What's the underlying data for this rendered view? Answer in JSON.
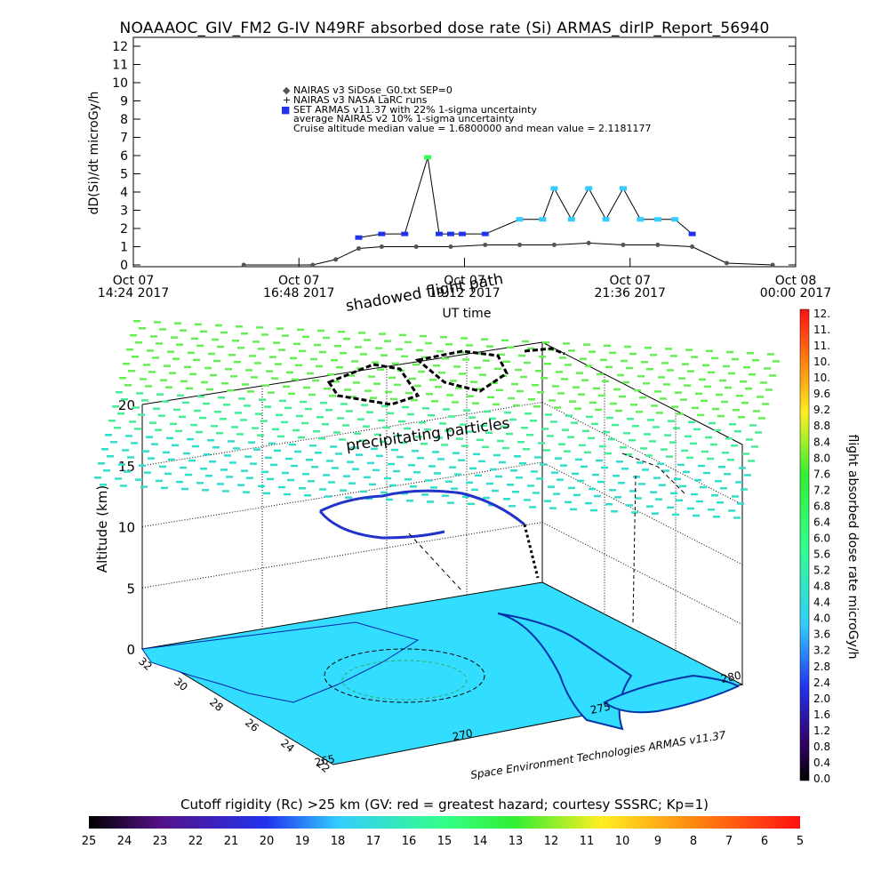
{
  "title": "NOAAAOC_GIV_FM2 G-IV   N49RF  absorbed dose rate (Si) ARMAS_dirIP_Report_56940",
  "top_chart": {
    "ylabel": "dD(Si)/dt microGy/h",
    "xlabel": "UT time",
    "yticks": [
      "0",
      "1",
      "2",
      "3",
      "4",
      "5",
      "6",
      "7",
      "8",
      "9",
      "10",
      "11",
      "12"
    ],
    "xticks": [
      {
        "l1": "Oct 07",
        "l2": "14:24 2017"
      },
      {
        "l1": "Oct 07",
        "l2": "16:48 2017"
      },
      {
        "l1": "Oct 07",
        "l2": "19:12 2017"
      },
      {
        "l1": "Oct 07",
        "l2": "21:36 2017"
      },
      {
        "l1": "Oct 08",
        "l2": "00:00 2017"
      }
    ],
    "legend": [
      "NAIRAS v3 SiDose_G0.txt SEP=0",
      "NAIRAS v3 NASA LaRC runs",
      "SET ARMAS v11.37 with 22% 1-sigma uncertainty",
      "average NAIRAS v2 10% 1-sigma uncertainty",
      "Cruise altitude median value = 1.6800000 and mean value = 2.1181177"
    ],
    "legend_markers": [
      "◆",
      "+",
      "■"
    ],
    "colors": {
      "nairas": "#555555",
      "armas": "#2233ee",
      "high": "#33ccff",
      "peak": "#33ff55",
      "low": "#551188"
    }
  },
  "three_d": {
    "zlabel": "Altitude (km)",
    "zticks": [
      "0",
      "5",
      "10",
      "15",
      "20"
    ],
    "lat_ticks": [
      "32",
      "30",
      "28",
      "26",
      "24",
      "22"
    ],
    "lon_ticks": [
      "265",
      "270",
      "275",
      "280"
    ],
    "annotations": {
      "shadowed": "shadowed flight path",
      "precip": "precipitating particles"
    },
    "credit": "Space Environment Technologies ARMAS v11.37"
  },
  "colorbar": {
    "label": "flight absorbed dose rate microGy/h",
    "ticks": [
      "0.0",
      "0.4",
      "0.8",
      "1.2",
      "1.6",
      "2.0",
      "2.4",
      "2.8",
      "3.2",
      "3.6",
      "4.0",
      "4.4",
      "4.8",
      "5.2",
      "5.6",
      "6.0",
      "6.4",
      "6.8",
      "7.2",
      "7.6",
      "8.0",
      "8.4",
      "8.8",
      "9.2",
      "9.6",
      "10.",
      "10.",
      "11.",
      "11.",
      "12."
    ]
  },
  "rigidity_bar": {
    "title": "Cutoff rigidity (Rc) >25 km (GV: red = greatest hazard; courtesy SSSRC; Kp=1)",
    "ticks": [
      "25",
      "24",
      "23",
      "22",
      "21",
      "20",
      "19",
      "18",
      "17",
      "16",
      "15",
      "14",
      "13",
      "12",
      "11",
      "10",
      "9",
      "8",
      "7",
      "6",
      "5"
    ]
  },
  "chart_data": {
    "type": "scatter",
    "x_unit": "UT time, 2017-10-07 14:24 to 2017-10-08 00:00",
    "ylim": [
      0,
      12
    ],
    "series": [
      {
        "name": "NAIRAS v3 SiDose_G0.txt SEP=0",
        "x": [
          "16:00",
          "17:00",
          "17:20",
          "17:40",
          "18:00",
          "18:30",
          "19:00",
          "19:30",
          "20:00",
          "20:30",
          "21:00",
          "21:30",
          "22:00",
          "22:30",
          "23:00",
          "23:40"
        ],
        "y": [
          0,
          0,
          0.3,
          0.9,
          1.0,
          1.0,
          1.0,
          1.1,
          1.1,
          1.1,
          1.2,
          1.1,
          1.1,
          1.0,
          0.1,
          0
        ]
      },
      {
        "name": "SET ARMAS v11.37 with 22% 1-sigma uncertainty",
        "x": [
          "17:40",
          "18:00",
          "18:20",
          "18:40",
          "18:50",
          "19:00",
          "19:10",
          "19:30",
          "20:00",
          "20:20",
          "20:30",
          "20:45",
          "21:00",
          "21:15",
          "21:30",
          "21:45",
          "22:00",
          "22:15",
          "22:30"
        ],
        "y": [
          1.5,
          1.7,
          1.7,
          5.9,
          1.7,
          1.7,
          1.7,
          1.7,
          2.5,
          2.5,
          4.2,
          2.5,
          4.2,
          2.5,
          4.2,
          2.5,
          2.5,
          2.5,
          1.7
        ]
      }
    ],
    "grid": false,
    "legend_position": "top-left"
  }
}
